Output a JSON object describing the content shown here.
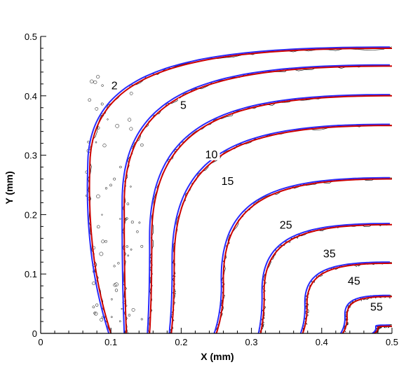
{
  "chart_data": {
    "type": "line",
    "xlabel": "X (mm)",
    "ylabel": "Y (mm)",
    "xlim": [
      0,
      0.5
    ],
    "ylim": [
      0,
      0.5
    ],
    "xticks": [
      "0",
      "0.1",
      "0.2",
      "0.3",
      "0.4",
      "0.5"
    ],
    "yticks": [
      "0",
      "0.1",
      "0.2",
      "0.3",
      "0.4",
      "0.5"
    ],
    "grid": false,
    "colors": {
      "blue": "#2a2aff",
      "red": "#cc0000",
      "noisy": "#000000"
    },
    "contours": [
      {
        "label": "2",
        "x0": 0.1,
        "apex": [
          0.07,
          0.28
        ],
        "ytop": 0.48,
        "label_pos": [
          0.105,
          0.417
        ]
      },
      {
        "label": "5",
        "x0": 0.122,
        "apex": [
          0.119,
          0.22
        ],
        "ytop": 0.45,
        "label_pos": [
          0.203,
          0.384
        ]
      },
      {
        "label": "10",
        "x0": 0.155,
        "apex": [
          0.158,
          0.16
        ],
        "ytop": 0.4,
        "label_pos": [
          0.243,
          0.301
        ]
      },
      {
        "label": "15",
        "x0": 0.186,
        "apex": [
          0.19,
          0.12
        ],
        "ytop": 0.35,
        "label_pos": [
          0.266,
          0.256
        ]
      },
      {
        "label": "25",
        "x0": 0.25,
        "apex": [
          0.26,
          0.09
        ],
        "ytop": 0.26,
        "label_pos": [
          0.349,
          0.182
        ]
      },
      {
        "label": "35",
        "x0": 0.313,
        "apex": [
          0.318,
          0.07
        ],
        "ytop": 0.183,
        "label_pos": [
          0.411,
          0.134
        ]
      },
      {
        "label": "45",
        "x0": 0.373,
        "apex": [
          0.379,
          0.05
        ],
        "ytop": 0.118,
        "label_pos": [
          0.446,
          0.088
        ]
      },
      {
        "label": "55",
        "x0": 0.43,
        "apex": [
          0.436,
          0.03
        ],
        "ytop": 0.062,
        "label_pos": [
          0.478,
          0.044
        ]
      },
      {
        "label": "",
        "x0": 0.475,
        "apex": [
          0.48,
          0.01
        ],
        "ytop": 0.012,
        "label_pos": null
      }
    ]
  }
}
